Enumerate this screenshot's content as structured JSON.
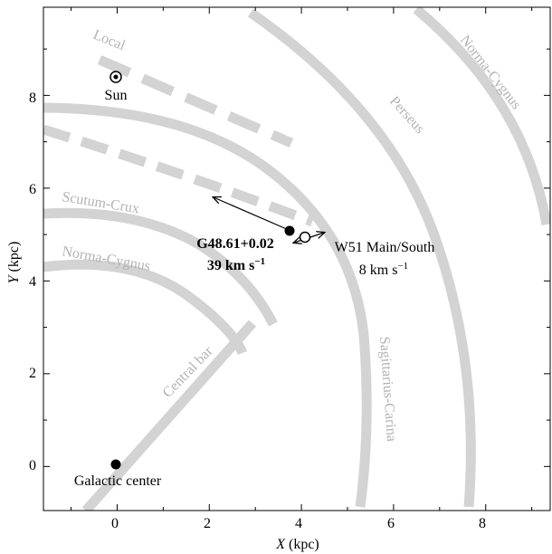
{
  "axes": {
    "x_title_var": "X",
    "x_title_unit": " (kpc)",
    "y_title_var": "Y",
    "y_title_unit": " (kpc)",
    "xlim": [
      -1.6,
      9.4
    ],
    "ylim": [
      -0.95,
      9.9
    ],
    "x_ticks": [
      "0",
      "2",
      "4",
      "6",
      "8"
    ],
    "y_ticks": [
      "0",
      "2",
      "4",
      "6",
      "8"
    ]
  },
  "arm_labels": {
    "local": "Local",
    "perseus": "Perseus",
    "norma_cygnus_outer": "Norma-Cygnus",
    "scutum_crux": "Scutum-Crux",
    "norma_cygnus_inner": "Norma-Cygnus",
    "central_bar": "Central bar",
    "sagittarius_carina": "Sagittarius-Carina"
  },
  "points": {
    "sun": "Sun",
    "galactic_center": "Galactic center"
  },
  "sources": {
    "g48": {
      "name": "G48.61+0.02",
      "velocity_value": "39 km s",
      "velocity_sup": "−1"
    },
    "w51": {
      "name": "W51 Main/South",
      "velocity_value": "8 km s",
      "velocity_sup": "−1"
    }
  },
  "colors": {
    "arm": "#d3d3d3",
    "arm_label": "#b3b3b3",
    "axis": "#000000"
  }
}
